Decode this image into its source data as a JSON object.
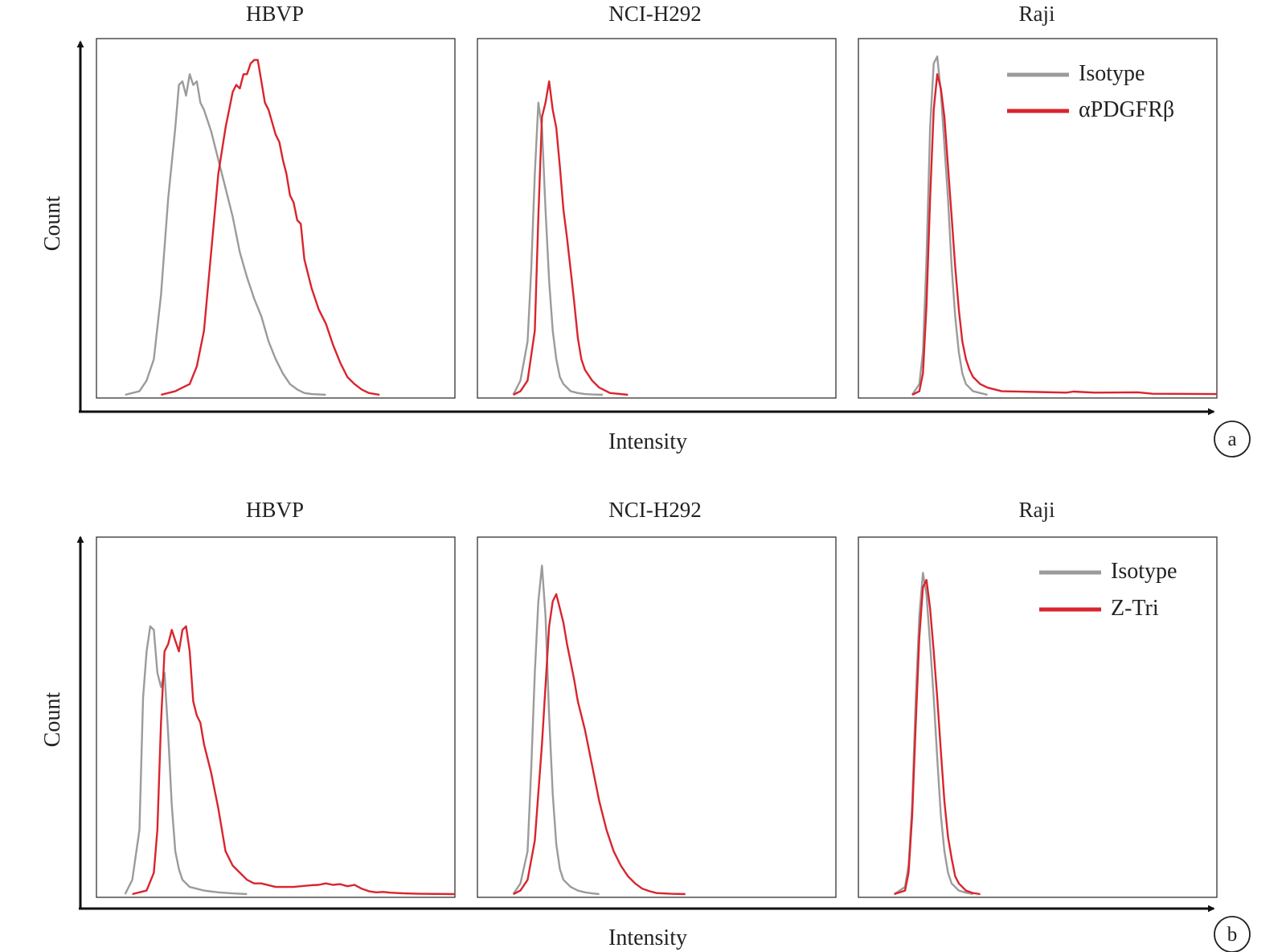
{
  "figure": {
    "colors": {
      "isotype": "#9b9b9b",
      "treated": "#d9242e",
      "axis": "#111111",
      "frame": "#333333"
    },
    "axes": {
      "x_label": "Intensity",
      "y_label": "Count"
    }
  },
  "chart_data": [
    {
      "type": "line",
      "row_tag": "a",
      "title": "HBVP",
      "xlabel": "Intensity",
      "ylabel": "Count",
      "xlim": [
        0,
        100
      ],
      "ylim": [
        0,
        100
      ],
      "grid": false,
      "series": [
        {
          "key": "iso",
          "x": [
            8,
            12,
            14,
            16,
            18,
            20,
            22,
            23,
            24,
            25,
            26,
            27,
            28,
            29,
            30,
            32,
            34,
            36,
            38,
            40,
            42,
            44,
            46,
            48,
            50,
            52,
            54,
            56,
            58,
            60,
            64
          ],
          "y": [
            0,
            1,
            4,
            10,
            28,
            55,
            75,
            87,
            88,
            84,
            90,
            87,
            88,
            82,
            80,
            74,
            66,
            58,
            50,
            40,
            33,
            27,
            22,
            15,
            10,
            6,
            3,
            1.5,
            0.5,
            0.2,
            0
          ]
        },
        {
          "key": "trt",
          "x": [
            18,
            22,
            24,
            26,
            28,
            30,
            32,
            34,
            36,
            38,
            39,
            40,
            41,
            42,
            43,
            44,
            45,
            46,
            47,
            48,
            50,
            51,
            52,
            53,
            54,
            55,
            56,
            57,
            58,
            60,
            62,
            64,
            66,
            68,
            70,
            72,
            74,
            76,
            79
          ],
          "y": [
            0,
            1,
            2,
            3,
            8,
            18,
            40,
            62,
            75,
            85,
            87,
            86,
            90,
            90,
            93,
            94,
            94,
            88,
            82,
            80,
            73,
            71,
            66,
            62,
            56,
            54,
            49,
            48,
            38,
            30,
            24,
            20,
            14,
            9,
            5,
            3,
            1.5,
            0.5,
            0
          ]
        }
      ]
    },
    {
      "type": "line",
      "row_tag": "a",
      "title": "NCI-H292",
      "xlabel": "Intensity",
      "ylabel": "Count",
      "xlim": [
        0,
        100
      ],
      "ylim": [
        0,
        100
      ],
      "grid": false,
      "series": [
        {
          "key": "iso",
          "x": [
            10,
            12,
            14,
            15,
            16,
            17,
            18,
            19,
            20,
            21,
            22,
            23,
            24,
            25,
            26,
            28,
            30,
            32,
            35
          ],
          "y": [
            0,
            4,
            15,
            35,
            62,
            82,
            75,
            52,
            32,
            18,
            10,
            5,
            3,
            2,
            1,
            0.5,
            0.2,
            0.1,
            0
          ]
        },
        {
          "key": "trt",
          "x": [
            10,
            12,
            14,
            16,
            17,
            18,
            19,
            20,
            21,
            22,
            23,
            24,
            25,
            26,
            27,
            28,
            29,
            30,
            32,
            34,
            37,
            42
          ],
          "y": [
            0,
            1,
            4,
            18,
            50,
            78,
            82,
            88,
            80,
            75,
            64,
            52,
            44,
            35,
            26,
            16,
            10,
            7,
            4,
            2,
            0.5,
            0
          ]
        }
      ]
    },
    {
      "type": "line",
      "row_tag": "a",
      "title": "Raji",
      "xlabel": "Intensity",
      "ylabel": "Count",
      "xlim": [
        0,
        100
      ],
      "ylim": [
        0,
        100
      ],
      "grid": false,
      "legend": {
        "position": "top-right",
        "labels": [
          "Isotype",
          "αPDGFRβ"
        ]
      },
      "series": [
        {
          "key": "iso",
          "x": [
            15,
            17,
            18,
            19,
            20,
            21,
            22,
            23,
            24,
            25,
            26,
            27,
            28,
            29,
            30,
            32,
            34,
            36
          ],
          "y": [
            0,
            3,
            12,
            38,
            75,
            93,
            95,
            85,
            70,
            55,
            36,
            22,
            12,
            6,
            3,
            1,
            0.5,
            0
          ]
        },
        {
          "key": "trt",
          "x": [
            15,
            17,
            18,
            19,
            20,
            21,
            22,
            23,
            24,
            25,
            26,
            27,
            28,
            29,
            30,
            31,
            32,
            34,
            36,
            40,
            50,
            58,
            60,
            66,
            78,
            80,
            82,
            100
          ],
          "y": [
            0,
            1,
            6,
            25,
            55,
            80,
            90,
            86,
            78,
            64,
            50,
            36,
            24,
            15,
            10,
            7,
            5,
            3,
            2,
            1,
            0.8,
            0.6,
            0.9,
            0.6,
            0.7,
            0.5,
            0.3,
            0.2
          ]
        }
      ]
    },
    {
      "type": "line",
      "row_tag": "b",
      "title": "HBVP",
      "xlabel": "Intensity",
      "ylabel": "Count",
      "xlim": [
        0,
        100
      ],
      "ylim": [
        0,
        100
      ],
      "grid": false,
      "series": [
        {
          "key": "iso",
          "x": [
            8,
            10,
            12,
            13,
            14,
            15,
            16,
            17,
            18,
            19,
            20,
            21,
            22,
            23,
            24,
            26,
            28,
            30,
            34,
            38,
            42
          ],
          "y": [
            0,
            4,
            18,
            55,
            68,
            75,
            74,
            62,
            58,
            62,
            45,
            25,
            12,
            7,
            4,
            2,
            1.5,
            1,
            0.5,
            0.2,
            0
          ]
        },
        {
          "key": "trt",
          "x": [
            10,
            14,
            16,
            17,
            18,
            19,
            20,
            21,
            22,
            23,
            24,
            25,
            26,
            27,
            28,
            29,
            30,
            32,
            34,
            36,
            38,
            40,
            42,
            44,
            46,
            48,
            50,
            55,
            60,
            62,
            64,
            66,
            68,
            70,
            72,
            74,
            76,
            78,
            80,
            82,
            84,
            86,
            90,
            100
          ],
          "y": [
            0,
            1,
            6,
            18,
            48,
            68,
            70,
            74,
            71,
            68,
            74,
            75,
            68,
            54,
            50,
            48,
            42,
            34,
            24,
            12,
            8,
            6,
            4,
            3,
            3,
            2.5,
            2,
            2,
            2.5,
            2.6,
            3,
            2.6,
            2.8,
            2.2,
            2.6,
            1.5,
            0.8,
            0.5,
            0.6,
            0.4,
            0.3,
            0.2,
            0.1,
            0
          ]
        }
      ]
    },
    {
      "type": "line",
      "row_tag": "b",
      "title": "NCI-H292",
      "xlabel": "Intensity",
      "ylabel": "Count",
      "xlim": [
        0,
        100
      ],
      "ylim": [
        0,
        100
      ],
      "grid": false,
      "series": [
        {
          "key": "iso",
          "x": [
            10,
            12,
            14,
            15,
            16,
            17,
            18,
            19,
            20,
            21,
            22,
            23,
            24,
            26,
            28,
            30,
            32,
            34
          ],
          "y": [
            0,
            3,
            12,
            35,
            62,
            82,
            92,
            78,
            50,
            28,
            14,
            7,
            4,
            2,
            1,
            0.5,
            0.2,
            0
          ]
        },
        {
          "key": "trt",
          "x": [
            10,
            12,
            14,
            16,
            18,
            20,
            21,
            22,
            23,
            24,
            25,
            26,
            27,
            28,
            30,
            32,
            34,
            36,
            38,
            40,
            42,
            44,
            46,
            48,
            50,
            54,
            58
          ],
          "y": [
            0,
            1,
            4,
            15,
            42,
            75,
            82,
            84,
            80,
            76,
            70,
            65,
            60,
            54,
            46,
            36,
            26,
            18,
            12,
            8,
            5,
            3,
            1.5,
            0.8,
            0.3,
            0.1,
            0
          ]
        }
      ]
    },
    {
      "type": "line",
      "row_tag": "b",
      "title": "Raji",
      "xlabel": "Intensity",
      "ylabel": "Count",
      "xlim": [
        0,
        100
      ],
      "ylim": [
        0,
        100
      ],
      "grid": false,
      "legend": {
        "position": "top-right",
        "labels": [
          "Isotype",
          "Z-Tri"
        ]
      },
      "series": [
        {
          "key": "iso",
          "x": [
            10,
            13,
            14,
            15,
            16,
            17,
            18,
            19,
            20,
            21,
            22,
            23,
            24,
            25,
            26,
            28,
            30,
            32
          ],
          "y": [
            0,
            2,
            8,
            25,
            55,
            78,
            90,
            84,
            70,
            55,
            38,
            22,
            12,
            6,
            3,
            1,
            0.4,
            0
          ]
        },
        {
          "key": "trt",
          "x": [
            10,
            13,
            14,
            15,
            16,
            17,
            18,
            19,
            20,
            21,
            22,
            23,
            24,
            25,
            26,
            27,
            28,
            30,
            32,
            34
          ],
          "y": [
            0,
            1,
            6,
            22,
            48,
            72,
            86,
            88,
            80,
            68,
            55,
            40,
            26,
            16,
            10,
            5,
            3,
            1,
            0.3,
            0
          ]
        }
      ]
    }
  ]
}
